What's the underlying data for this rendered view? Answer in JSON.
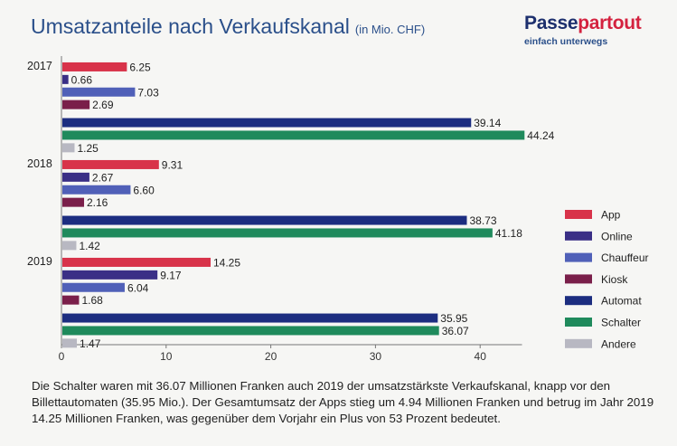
{
  "header": {
    "title": "Umsatzanteile nach Verkaufskanal",
    "unit": "(in Mio. CHF)"
  },
  "brand": {
    "name_part1": "Passe",
    "name_part2": "partout",
    "tagline": "einfach unterwegs"
  },
  "chart_data": {
    "type": "bar",
    "orientation": "horizontal",
    "categories": [
      "2017",
      "2018",
      "2019"
    ],
    "series": [
      {
        "name": "App",
        "color": "#d8334a",
        "values": [
          6.25,
          9.31,
          14.25
        ]
      },
      {
        "name": "Online",
        "color": "#3a2f86",
        "values": [
          0.66,
          2.67,
          9.17
        ]
      },
      {
        "name": "Chauffeur",
        "color": "#5060b8",
        "values": [
          7.03,
          6.6,
          6.04
        ]
      },
      {
        "name": "Kiosk",
        "color": "#7a1f4a",
        "values": [
          2.69,
          2.16,
          1.68
        ]
      },
      {
        "name": "Automat",
        "color": "#1c2d80",
        "values": [
          39.14,
          38.73,
          35.95
        ]
      },
      {
        "name": "Schalter",
        "color": "#1f8a5c",
        "values": [
          44.24,
          41.18,
          36.07
        ]
      },
      {
        "name": "Andere",
        "color": "#b8b8c2",
        "values": [
          1.25,
          1.42,
          1.47
        ]
      }
    ],
    "value_labels": [
      [
        "6.25",
        "0.66",
        "7.03",
        "2.69",
        "39.14",
        "44.24",
        "1.25"
      ],
      [
        "9.31",
        "2.67",
        "6.60",
        "2.16",
        "38.73",
        "41.18",
        "1.42"
      ],
      [
        "14.25",
        "9.17",
        "6.04",
        "1.68",
        "35.95",
        "36.07",
        "1.47"
      ]
    ],
    "xlim": [
      0,
      44
    ],
    "xticks": [
      0,
      10,
      20,
      30,
      40
    ],
    "legend_position": "right",
    "grid": false
  },
  "caption": "Die Schalter waren mit 36.07 Millionen Franken auch 2019 der umsatzstärkste Verkaufskanal, knapp vor den Billettautomaten (35.95 Mio.). Der Gesamtumsatz der Apps stieg um 4.94 Millionen Franken und betrug im Jahr 2019 14.25 Millionen Franken, was gegenüber dem Vorjahr ein Plus von 53 Prozent bedeutet."
}
